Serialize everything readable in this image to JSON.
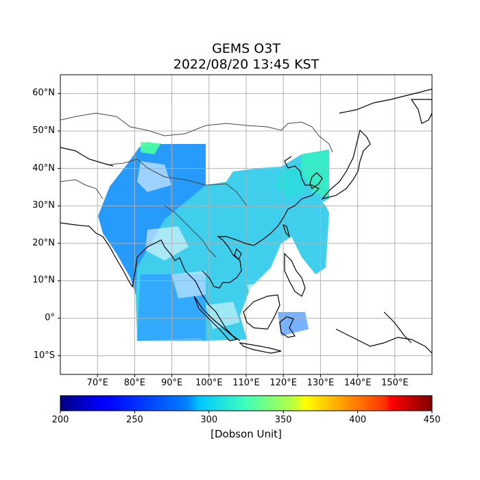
{
  "title": {
    "line1": "GEMS O3T",
    "line2": "2022/08/20 13:45 KST"
  },
  "map": {
    "lat_ticks": [
      {
        "label": "60°N",
        "value": 60
      },
      {
        "label": "50°N",
        "value": 50
      },
      {
        "label": "40°N",
        "value": 40
      },
      {
        "label": "30°N",
        "value": 30
      },
      {
        "label": "20°N",
        "value": 20
      },
      {
        "label": "10°N",
        "value": 10
      },
      {
        "label": "0°",
        "value": 0
      },
      {
        "label": "10°S",
        "value": -10
      }
    ],
    "lon_ticks": [
      {
        "label": "70°E",
        "value": 70
      },
      {
        "label": "80°E",
        "value": 80
      },
      {
        "label": "90°E",
        "value": 90
      },
      {
        "label": "100°E",
        "value": 100
      },
      {
        "label": "110°E",
        "value": 110
      },
      {
        "label": "120°E",
        "value": 120
      },
      {
        "label": "130°E",
        "value": 130
      },
      {
        "label": "140°E",
        "value": 140
      },
      {
        "label": "150°E",
        "value": 150
      }
    ],
    "lon_range": [
      60,
      160
    ],
    "lat_range": [
      -15,
      65
    ],
    "grid": true
  },
  "colorbar": {
    "label": "[Dobson Unit]",
    "ticks": [
      "200",
      "250",
      "300",
      "350",
      "400",
      "450"
    ],
    "range": [
      200,
      450
    ],
    "colormap": "jet"
  },
  "colors": {
    "coast": "#000000",
    "border": "#444444",
    "grid": "#b0b0b0"
  }
}
